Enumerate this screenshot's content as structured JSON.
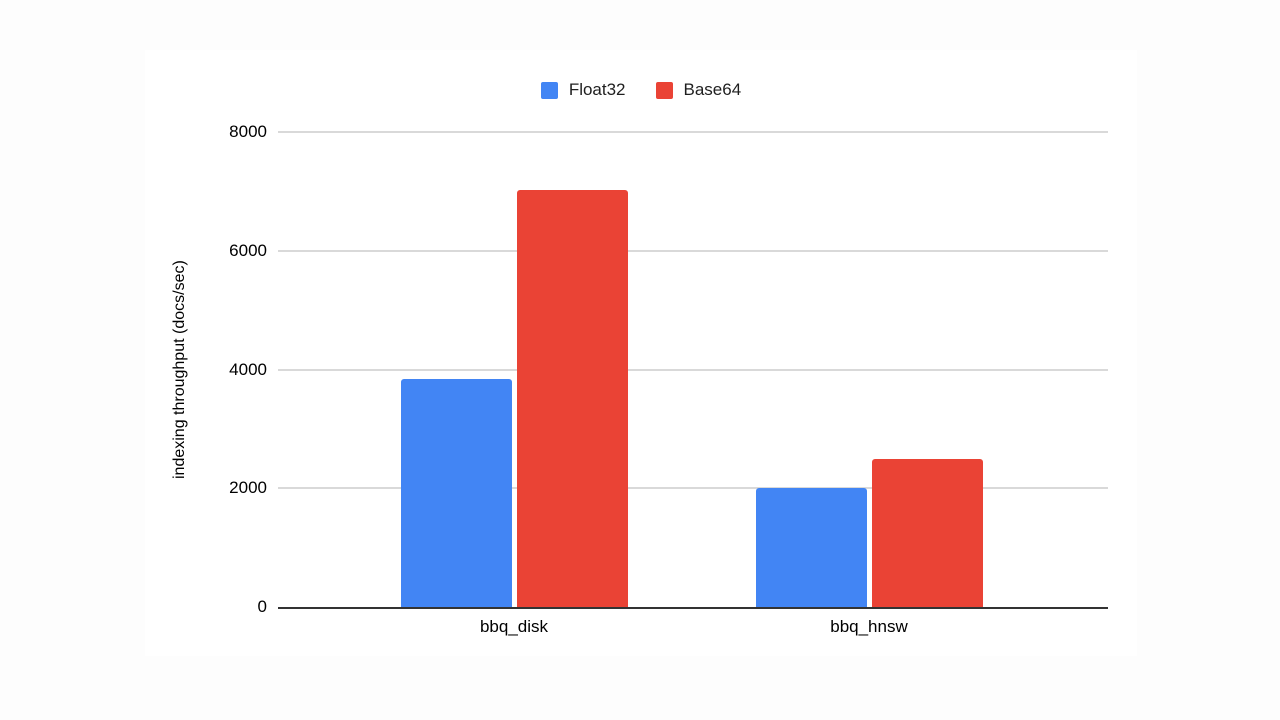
{
  "page": {
    "background_color": "#fdfdfd",
    "card_background_color": "#ffffff"
  },
  "chart_data": {
    "type": "bar",
    "title": "",
    "xlabel": "",
    "ylabel": "indexing throughput (docs/sec)",
    "categories": [
      "bbq_disk",
      "bbq_hnsw"
    ],
    "series": [
      {
        "name": "Float32",
        "color": "#4285F4",
        "values": [
          3840,
          2000
        ]
      },
      {
        "name": "Base64",
        "color": "#EA4335",
        "values": [
          7020,
          2500
        ]
      }
    ],
    "ylim": [
      0,
      8000
    ],
    "yticks": [
      0,
      2000,
      4000,
      6000,
      8000
    ],
    "grid": true,
    "legend_position": "top",
    "gridline_color": "#d9d9d9",
    "axis_line_color": "#333333",
    "text_color": "#000000"
  }
}
